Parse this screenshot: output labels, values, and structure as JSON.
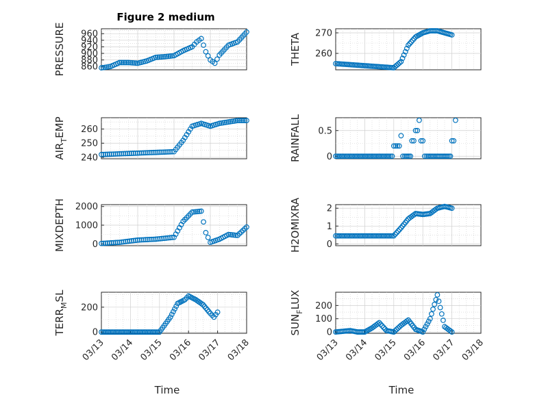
{
  "figure": {
    "title": "Figure 2 medium",
    "marker_color": "#0072BD"
  },
  "chart_data": [
    {
      "type": "scatter",
      "title": "Figure 2 medium",
      "ylabel": "PRESSURE",
      "xlabel": "",
      "ylim": [
        850,
        975
      ],
      "yticks": [
        860,
        880,
        900,
        920,
        940,
        960
      ],
      "xlim": [
        "2017-03-13",
        "2017-03-17"
      ],
      "grid": true,
      "marker": "circle",
      "x": [
        "2017-03-13",
        "2017-03-13 06:00",
        "2017-03-13 12:00",
        "2017-03-13 18:00",
        "2017-03-14",
        "2017-03-14 06:00",
        "2017-03-14 12:00",
        "2017-03-14 18:00",
        "2017-03-15",
        "2017-03-15 06:00",
        "2017-03-15 12:00",
        "2017-03-15 15:00",
        "2017-03-15 18:00",
        "2017-03-15 21:00",
        "2017-03-16",
        "2017-03-16 03:00",
        "2017-03-16 06:00",
        "2017-03-16 12:00",
        "2017-03-16 18:00",
        "2017-03-17"
      ],
      "y": [
        856,
        860,
        872,
        872,
        870,
        877,
        888,
        890,
        893,
        908,
        920,
        935,
        945,
        905,
        880,
        870,
        895,
        925,
        935,
        965
      ]
    },
    {
      "type": "scatter",
      "ylabel": "THETA",
      "xlabel": "",
      "ylim": [
        252,
        272
      ],
      "yticks": [
        260,
        270
      ],
      "xlim": [
        "2017-03-13",
        "2017-03-18"
      ],
      "grid": true,
      "marker": "circle",
      "x": [
        "2017-03-13",
        "2017-03-13 12:00",
        "2017-03-14",
        "2017-03-14 12:00",
        "2017-03-15",
        "2017-03-15 06:00",
        "2017-03-15 12:00",
        "2017-03-15 18:00",
        "2017-03-16",
        "2017-03-16 06:00",
        "2017-03-16 12:00",
        "2017-03-16 18:00",
        "2017-03-17"
      ],
      "y": [
        255,
        254.5,
        254,
        253.5,
        253,
        256,
        264,
        268,
        270,
        271,
        271,
        270,
        269
      ]
    },
    {
      "type": "scatter",
      "ylabel": "AIR_TEMP",
      "xlabel": "",
      "ylim": [
        239,
        268
      ],
      "yticks": [
        240,
        250,
        260
      ],
      "xlim": [
        "2017-03-13",
        "2017-03-17"
      ],
      "grid": true,
      "marker": "circle",
      "x": [
        "2017-03-13",
        "2017-03-13 12:00",
        "2017-03-14",
        "2017-03-14 12:00",
        "2017-03-15",
        "2017-03-15 06:00",
        "2017-03-15 12:00",
        "2017-03-15 18:00",
        "2017-03-16",
        "2017-03-16 06:00",
        "2017-03-16 12:00",
        "2017-03-16 18:00",
        "2017-03-17"
      ],
      "y": [
        242,
        242.5,
        243,
        243.5,
        244,
        252,
        262,
        264,
        262,
        264,
        265,
        266,
        266
      ]
    },
    {
      "type": "scatter",
      "ylabel": "RAINFALL",
      "xlabel": "",
      "ylim": [
        -0.05,
        0.75
      ],
      "yticks": [
        0,
        0.5
      ],
      "xlim": [
        "2017-03-13",
        "2017-03-18"
      ],
      "grid": true,
      "marker": "circle",
      "x": [
        "2017-03-13",
        "2017-03-13 12:00",
        "2017-03-14",
        "2017-03-14 12:00",
        "2017-03-15",
        "2017-03-15 03:00",
        "2017-03-15 06:00",
        "2017-03-15 09:00",
        "2017-03-15 15:00",
        "2017-03-15 18:00",
        "2017-03-15 21:00",
        "2017-03-16",
        "2017-03-16 03:00",
        "2017-03-16 12:00",
        "2017-03-16 18:00",
        "2017-03-17",
        "2017-03-17 03:00"
      ],
      "y": [
        0,
        0,
        0,
        0,
        0.2,
        0.2,
        0.4,
        0,
        0.3,
        0.5,
        0.7,
        0.3,
        0,
        0,
        0,
        0.3,
        0.7
      ]
    },
    {
      "type": "scatter",
      "ylabel": "MIXDEPTH",
      "xlabel": "",
      "ylim": [
        -100,
        2100
      ],
      "yticks": [
        0,
        1000,
        2000
      ],
      "xlim": [
        "2017-03-13",
        "2017-03-17"
      ],
      "grid": true,
      "marker": "circle",
      "x": [
        "2017-03-13",
        "2017-03-13 12:00",
        "2017-03-14",
        "2017-03-14 12:00",
        "2017-03-15",
        "2017-03-15 06:00",
        "2017-03-15 12:00",
        "2017-03-15 18:00",
        "2017-03-15 21:00",
        "2017-03-16",
        "2017-03-16 06:00",
        "2017-03-16 12:00",
        "2017-03-16 18:00",
        "2017-03-17"
      ],
      "y": [
        20,
        80,
        200,
        250,
        350,
        1200,
        1700,
        1750,
        600,
        80,
        250,
        500,
        450,
        900
      ]
    },
    {
      "type": "scatter",
      "ylabel": "H2OMIXRA",
      "xlabel": "",
      "ylim": [
        -0.1,
        2.2
      ],
      "yticks": [
        0,
        1,
        2
      ],
      "xlim": [
        "2017-03-13",
        "2017-03-18"
      ],
      "grid": true,
      "marker": "circle",
      "x": [
        "2017-03-13",
        "2017-03-13 12:00",
        "2017-03-14",
        "2017-03-14 12:00",
        "2017-03-15",
        "2017-03-15 06:00",
        "2017-03-15 12:00",
        "2017-03-15 18:00",
        "2017-03-16",
        "2017-03-16 06:00",
        "2017-03-16 12:00",
        "2017-03-16 18:00",
        "2017-03-17"
      ],
      "y": [
        0.45,
        0.45,
        0.45,
        0.45,
        0.45,
        0.9,
        1.4,
        1.7,
        1.65,
        1.7,
        2.0,
        2.1,
        2.0
      ]
    },
    {
      "type": "scatter",
      "ylabel": "TERR_MSL",
      "xlabel": "Time",
      "ylim": [
        -10,
        320
      ],
      "yticks": [
        0,
        200
      ],
      "xlim": [
        "2017-03-13",
        "2017-03-18"
      ],
      "xticks": [
        "03/13",
        "03/14",
        "03/15",
        "03/16",
        "03/17",
        "03/18"
      ],
      "grid": true,
      "marker": "circle",
      "x": [
        "2017-03-13",
        "2017-03-13 12:00",
        "2017-03-14",
        "2017-03-14 12:00",
        "2017-03-15",
        "2017-03-15 09:00",
        "2017-03-15 15:00",
        "2017-03-15 21:00",
        "2017-03-16",
        "2017-03-16 06:00",
        "2017-03-16 12:00",
        "2017-03-16 18:00",
        "2017-03-16 21:00",
        "2017-03-17"
      ],
      "y": [
        0,
        0,
        0,
        0,
        0,
        120,
        230,
        260,
        290,
        260,
        220,
        150,
        120,
        160
      ]
    },
    {
      "type": "scatter",
      "ylabel": "SUN_FLUX",
      "xlabel": "Time",
      "ylim": [
        -10,
        300
      ],
      "yticks": [
        0,
        100,
        200
      ],
      "xlim": [
        "2017-03-13",
        "2017-03-18"
      ],
      "xticks": [
        "03/13",
        "03/14",
        "03/15",
        "03/16",
        "03/17",
        "03/18"
      ],
      "grid": true,
      "marker": "circle",
      "x": [
        "2017-03-13",
        "2017-03-13 06:00",
        "2017-03-13 12:00",
        "2017-03-13 18:00",
        "2017-03-14",
        "2017-03-14 06:00",
        "2017-03-14 12:00",
        "2017-03-14 18:00",
        "2017-03-15",
        "2017-03-15 06:00",
        "2017-03-15 12:00",
        "2017-03-15 18:00",
        "2017-03-16",
        "2017-03-16 06:00",
        "2017-03-16 12:00",
        "2017-03-16 18:00",
        "2017-03-17"
      ],
      "y": [
        0,
        5,
        10,
        0,
        0,
        30,
        70,
        10,
        0,
        50,
        90,
        20,
        0,
        100,
        280,
        40,
        0
      ]
    }
  ]
}
